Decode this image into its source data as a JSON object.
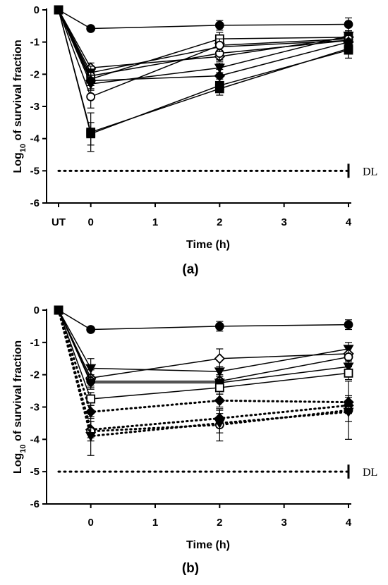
{
  "chart_data": [
    {
      "type": "line",
      "panel_label": "(a)",
      "title": "",
      "xlabel": "Time (h)",
      "ylabel_main": "Log",
      "ylabel_sub": "10",
      "ylabel_rest": " of survival fraction",
      "x_ticks": [
        {
          "value": -0.5,
          "label": "UT"
        },
        {
          "value": 0,
          "label": "0"
        },
        {
          "value": 1,
          "label": "1"
        },
        {
          "value": 2,
          "label": "2"
        },
        {
          "value": 3,
          "label": "3"
        },
        {
          "value": 4,
          "label": "4"
        }
      ],
      "y_ticks": [
        0,
        -1,
        -2,
        -3,
        -4,
        -5,
        -6
      ],
      "xlim": [
        -0.5,
        4
      ],
      "ylim": [
        -6,
        0
      ],
      "detection_limit": {
        "value": -5,
        "label": "DL"
      },
      "series": [
        {
          "marker": "circle-filled",
          "style": "solid",
          "x": [
            -0.5,
            0,
            2,
            4
          ],
          "y": [
            0,
            -0.58,
            -0.48,
            -0.45
          ],
          "err": [
            0,
            0.05,
            0.15,
            0.2
          ]
        },
        {
          "marker": "diamond-open",
          "style": "solid",
          "x": [
            -0.5,
            0,
            2,
            4
          ],
          "y": [
            0,
            -1.8,
            -1.45,
            -0.85
          ],
          "err": [
            0,
            0.15,
            0.15,
            0.2
          ]
        },
        {
          "marker": "triangle-down-filled",
          "style": "solid",
          "x": [
            -0.5,
            0,
            2,
            4
          ],
          "y": [
            0,
            -1.95,
            -1.15,
            -0.95
          ],
          "err": [
            0,
            0.2,
            0.2,
            0.2
          ]
        },
        {
          "marker": "circle-open",
          "style": "solid",
          "x": [
            -0.5,
            0,
            2,
            4
          ],
          "y": [
            0,
            -2.05,
            -1.35,
            -0.95
          ],
          "err": [
            0,
            0.2,
            0.2,
            0.2
          ]
        },
        {
          "marker": "square-open",
          "style": "solid",
          "x": [
            -0.5,
            0,
            2,
            4
          ],
          "y": [
            0,
            -2.15,
            -0.9,
            -0.85
          ],
          "err": [
            0,
            0.2,
            0.2,
            0.2
          ]
        },
        {
          "marker": "triangle-down-filled",
          "style": "solid",
          "x": [
            -0.5,
            0,
            2,
            4
          ],
          "y": [
            0,
            -2.3,
            -1.8,
            -0.8
          ],
          "err": [
            0,
            0.2,
            0.15,
            0.15
          ]
        },
        {
          "marker": "circle-open",
          "style": "solid",
          "x": [
            -0.5,
            0,
            2,
            4
          ],
          "y": [
            0,
            -2.7,
            -1.1,
            -0.9
          ],
          "err": [
            0,
            0.35,
            0.2,
            0.2
          ]
        },
        {
          "marker": "diamond-filled",
          "style": "solid",
          "x": [
            -0.5,
            0,
            2,
            4
          ],
          "y": [
            0,
            -2.2,
            -2.05,
            -1.0
          ],
          "err": [
            0,
            0.25,
            0.2,
            0.2
          ]
        },
        {
          "marker": "square-filled",
          "style": "solid",
          "x": [
            -0.5,
            0,
            2,
            4
          ],
          "y": [
            0,
            -3.85,
            -2.35,
            -1.25
          ],
          "err": [
            0,
            0.35,
            0.2,
            0.25
          ]
        },
        {
          "marker": "square-filled",
          "style": "solid",
          "x": [
            -0.5,
            0,
            2,
            4
          ],
          "y": [
            0,
            -3.8,
            -2.45,
            -1.2
          ],
          "err": [
            0,
            0.6,
            0.2,
            0.3
          ]
        }
      ]
    },
    {
      "type": "line",
      "panel_label": "(b)",
      "title": "",
      "xlabel": "Time (h)",
      "ylabel_main": "Log",
      "ylabel_sub": "10",
      "ylabel_rest": " of survival fraction",
      "x_ticks": [
        {
          "value": 0,
          "label": "0"
        },
        {
          "value": 1,
          "label": "1"
        },
        {
          "value": 2,
          "label": "2"
        },
        {
          "value": 3,
          "label": "3"
        },
        {
          "value": 4,
          "label": "4"
        }
      ],
      "y_ticks": [
        0,
        -1,
        -2,
        -3,
        -4,
        -5,
        -6
      ],
      "xlim": [
        -0.5,
        4
      ],
      "ylim": [
        -6,
        0
      ],
      "detection_limit": {
        "value": -5,
        "label": "DL"
      },
      "series": [
        {
          "marker": "circle-filled",
          "style": "solid",
          "x": [
            -0.5,
            0,
            2,
            4
          ],
          "y": [
            0,
            -0.6,
            -0.5,
            -0.45
          ],
          "err": [
            0,
            0.05,
            0.15,
            0.15
          ]
        },
        {
          "marker": "triangle-down-filled",
          "style": "solid",
          "x": [
            -0.5,
            0,
            2,
            4
          ],
          "y": [
            0,
            -1.8,
            -1.9,
            -1.2
          ],
          "err": [
            0,
            0.3,
            0.15,
            0.2
          ]
        },
        {
          "marker": "diamond-open",
          "style": "solid",
          "x": [
            -0.5,
            0,
            2,
            4
          ],
          "y": [
            0,
            -2.1,
            -1.5,
            -1.35
          ],
          "err": [
            0,
            0.25,
            0.3,
            0.25
          ]
        },
        {
          "marker": "circle-open",
          "style": "solid",
          "x": [
            -0.5,
            0,
            2,
            4
          ],
          "y": [
            0,
            -2.2,
            -2.2,
            -1.45
          ],
          "err": [
            0,
            0.2,
            0.2,
            0.3
          ]
        },
        {
          "marker": "triangle-down-filled",
          "style": "solid",
          "x": [
            -0.5,
            0,
            2,
            4
          ],
          "y": [
            0,
            -2.25,
            -2.25,
            -1.75
          ],
          "err": [
            0,
            0.2,
            0.2,
            0.2
          ]
        },
        {
          "marker": "square-open",
          "style": "solid",
          "x": [
            -0.5,
            0,
            2,
            4
          ],
          "y": [
            0,
            -2.75,
            -2.4,
            -1.95
          ],
          "err": [
            0,
            0.2,
            0.2,
            0.2
          ]
        },
        {
          "marker": "diamond-filled",
          "style": "dotted",
          "x": [
            -0.5,
            0,
            2,
            4
          ],
          "y": [
            0,
            -3.15,
            -2.8,
            -2.85
          ],
          "err": [
            0,
            0.2,
            0.2,
            0.2
          ]
        },
        {
          "marker": "diamond-filled",
          "style": "dotted",
          "x": [
            -0.5,
            0,
            2,
            4
          ],
          "y": [
            0,
            -3.7,
            -3.35,
            -2.95
          ],
          "err": [
            0,
            0.25,
            0.25,
            0.25
          ]
        },
        {
          "marker": "circle-open",
          "style": "dotted",
          "x": [
            -0.5,
            0,
            2,
            4
          ],
          "y": [
            0,
            -3.75,
            -3.55,
            -3.1
          ],
          "err": [
            0,
            0.3,
            0.5,
            0.9
          ]
        },
        {
          "marker": "triangle-down-filled",
          "style": "dotted",
          "x": [
            -0.5,
            0,
            2,
            4
          ],
          "y": [
            0,
            -3.9,
            -3.5,
            -3.15
          ],
          "err": [
            0,
            0.6,
            0.3,
            0.3
          ]
        }
      ]
    }
  ]
}
